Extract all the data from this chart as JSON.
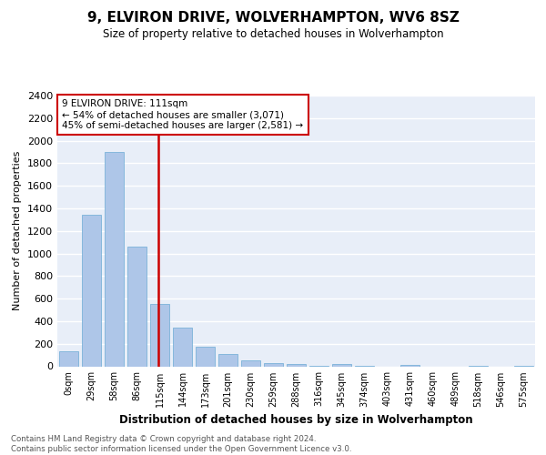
{
  "title": "9, ELVIRON DRIVE, WOLVERHAMPTON, WV6 8SZ",
  "subtitle": "Size of property relative to detached houses in Wolverhampton",
  "xlabel": "Distribution of detached houses by size in Wolverhampton",
  "ylabel": "Number of detached properties",
  "bar_color": "#aec6e8",
  "bar_edge_color": "#6aaad4",
  "background_color": "#e8eef8",
  "grid_color": "#ffffff",
  "annotation_text_line1": "9 ELVIRON DRIVE: 111sqm",
  "annotation_text_line2": "← 54% of detached houses are smaller (3,071)",
  "annotation_text_line3": "45% of semi-detached houses are larger (2,581) →",
  "categories": [
    "0sqm",
    "29sqm",
    "58sqm",
    "86sqm",
    "115sqm",
    "144sqm",
    "173sqm",
    "201sqm",
    "230sqm",
    "259sqm",
    "288sqm",
    "316sqm",
    "345sqm",
    "374sqm",
    "403sqm",
    "431sqm",
    "460sqm",
    "489sqm",
    "518sqm",
    "546sqm",
    "575sqm"
  ],
  "values": [
    130,
    1340,
    1900,
    1060,
    550,
    340,
    170,
    110,
    55,
    30,
    20,
    5,
    20,
    5,
    0,
    10,
    0,
    0,
    5,
    0,
    5
  ],
  "ylim": [
    0,
    2400
  ],
  "yticks": [
    0,
    200,
    400,
    600,
    800,
    1000,
    1200,
    1400,
    1600,
    1800,
    2000,
    2200,
    2400
  ],
  "vline_x": 3.925,
  "footer_line1": "Contains HM Land Registry data © Crown copyright and database right 2024.",
  "footer_line2": "Contains public sector information licensed under the Open Government Licence v3.0."
}
